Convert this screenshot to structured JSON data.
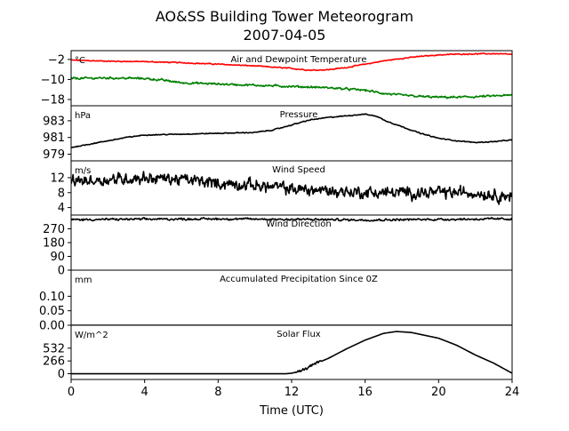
{
  "chart_data": {
    "type": "line",
    "title": "AO&SS Building Tower Meteorogram",
    "subtitle": "2007-04-05",
    "xlabel": "Time (UTC)",
    "xlim": [
      0,
      24
    ],
    "xticks": [
      0,
      4,
      8,
      12,
      16,
      20,
      24
    ],
    "panels": [
      {
        "title": "Air and Dewpoint Temperature",
        "unit": "°C",
        "ylim": [
          -20.5,
          1.5
        ],
        "yticks": [
          -2,
          -10,
          -18
        ],
        "series": [
          {
            "color": "#ff0000",
            "noise": 0.3,
            "x": [
              0,
              2,
              4,
              6,
              8,
              10,
              12,
              13,
              14,
              15,
              16,
              17,
              18,
              19,
              20,
              21,
              22,
              23,
              24
            ],
            "y": [
              -2.3,
              -2.7,
              -2.9,
              -3.3,
              -3.9,
              -4.6,
              -5.6,
              -6.3,
              -6.1,
              -5.2,
              -3.9,
              -2.6,
              -1.6,
              -0.8,
              -0.2,
              0.1,
              0.2,
              0.3,
              0.0
            ]
          },
          {
            "color": "#008000",
            "noise": 0.6,
            "x": [
              0,
              2,
              4,
              5,
              6,
              8,
              10,
              12,
              14,
              16,
              17,
              18,
              19,
              20,
              21,
              22,
              23,
              24
            ],
            "y": [
              -9.6,
              -9.4,
              -9.6,
              -10.3,
              -11.3,
              -11.8,
              -12.3,
              -12.8,
              -13.3,
              -14.3,
              -15.6,
              -16.3,
              -16.8,
              -17.1,
              -17.1,
              -16.9,
              -16.6,
              -16.3
            ]
          }
        ]
      },
      {
        "title": "Pressure",
        "unit": "hPa",
        "ylim": [
          978.2,
          984.8
        ],
        "yticks": [
          979,
          981,
          983
        ],
        "series": [
          {
            "color": "#000000",
            "noise": 0.08,
            "x": [
              0,
              1,
              2,
              3,
              4,
              6,
              8,
              10,
              11,
              12,
              13,
              14,
              15,
              16,
              16.7,
              17,
              18,
              19,
              20,
              21,
              22,
              23,
              24
            ],
            "y": [
              979.8,
              980.2,
              980.6,
              981.0,
              981.3,
              981.4,
              981.5,
              981.6,
              981.9,
              982.5,
              983.1,
              983.4,
              983.6,
              983.8,
              983.5,
              983.1,
              982.3,
              981.5,
              980.9,
              980.6,
              980.4,
              980.5,
              980.7
            ]
          }
        ]
      },
      {
        "title": "Wind Speed",
        "unit": "m/s",
        "ylim": [
          2,
          16.5
        ],
        "yticks": [
          4,
          8,
          12
        ],
        "series": [
          {
            "color": "#000000",
            "noise": 2.3,
            "x": [
              0,
              2,
              4,
              6,
              8,
              10,
              12,
              14,
              16,
              18,
              20,
              22,
              24
            ],
            "y": [
              11,
              11.5,
              12,
              11.5,
              10.5,
              10,
              9,
              8.5,
              8,
              8,
              8,
              8,
              7
            ]
          }
        ]
      },
      {
        "title": "Wind Direction",
        "unit": "",
        "ylim": [
          0,
          360
        ],
        "yticks": [
          0,
          90,
          180,
          270
        ],
        "series": [
          {
            "color": "#000000",
            "noise": 10,
            "x": [
              0,
              4,
              8,
              12,
              16,
              20,
              24
            ],
            "y": [
              330,
              333,
              335,
              332,
              328,
              332,
              335
            ]
          }
        ]
      },
      {
        "title": "Accumulated Precipitation Since 0Z",
        "unit": "mm",
        "ylim": [
          0,
          0.19
        ],
        "yticks": [
          0.0,
          0.05,
          0.1
        ],
        "series": [
          {
            "color": "#000000",
            "noise": 0,
            "x": [
              0,
              24
            ],
            "y": [
              0,
              0
            ]
          }
        ]
      },
      {
        "title": "Solar Flux",
        "unit": "W/m^2",
        "ylim": [
          -120,
          1010
        ],
        "yticks": [
          0,
          266,
          532
        ],
        "series": [
          {
            "color": "#000000",
            "noise": 0,
            "noise_from_x": 12.2,
            "noise_to_x": 13.6,
            "noise_amp": 40,
            "x": [
              0,
              11.7,
              12.0,
              12.5,
              13.0,
              13.5,
              14,
              15,
              16,
              17,
              17.7,
              18.5,
              19,
              20,
              21,
              22,
              23,
              24
            ],
            "y": [
              0,
              0,
              10,
              55,
              150,
              240,
              320,
              520,
              700,
              840,
              880,
              860,
              820,
              740,
              590,
              390,
              220,
              10
            ]
          }
        ]
      }
    ]
  }
}
